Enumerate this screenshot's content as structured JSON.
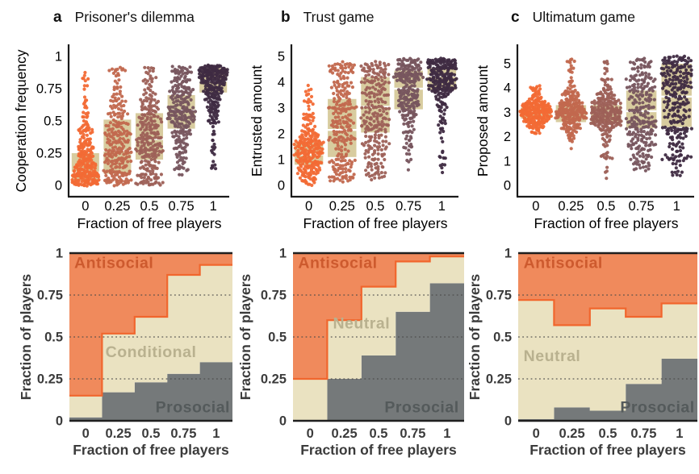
{
  "figure_titles": [
    {
      "letter": "a",
      "title": "Prisoner's dilemma"
    },
    {
      "letter": "b",
      "title": "Trust game"
    },
    {
      "letter": "c",
      "title": "Ultimatum game"
    }
  ],
  "palette": {
    "dot_colors": [
      "#f26a35",
      "#c2684e",
      "#9d6057",
      "#77555e",
      "#3f2b42"
    ],
    "box_fill": "#d8cc9f",
    "median_line": "#ffffff",
    "antisocial_fill": "#f08a5c",
    "antisocial_edge": "#f1662d",
    "neutral_fill": "#eae2c1",
    "prosocial_fill": "#75797a",
    "axis_color": "#1a1a1a",
    "grid_color": "#4a4a4a"
  },
  "chart_data": [
    {
      "type": "scatter",
      "variant": "beeswarm-box",
      "panel": "a",
      "title": "Prisoner's dilemma",
      "ylabel": "Cooperation frequency",
      "xlabel": "Fraction of free players",
      "categories": [
        "0",
        "0.25",
        "0.5",
        "0.75",
        "1"
      ],
      "ylim": [
        0,
        1
      ],
      "yticks": [
        0,
        0.25,
        0.5,
        0.75,
        1
      ],
      "ytick_labels": [
        "0",
        "0.25",
        "0.5",
        "0.75",
        "1"
      ],
      "grid": false,
      "groups": [
        {
          "category": "0",
          "color": "#f26a35",
          "box": [
            0.04,
            0.1,
            0.25
          ],
          "range": [
            0,
            0.9
          ],
          "n": 260,
          "tail": 0.22
        },
        {
          "category": "0.25",
          "color": "#c2684e",
          "box": [
            0.09,
            0.27,
            0.51
          ],
          "range": [
            0,
            0.92
          ],
          "n": 250,
          "tail": 0.28
        },
        {
          "category": "0.5",
          "color": "#9d6057",
          "box": [
            0.2,
            0.36,
            0.56
          ],
          "range": [
            0,
            0.92
          ],
          "n": 250,
          "tail": 0.3
        },
        {
          "category": "0.75",
          "color": "#77555e",
          "box": [
            0.44,
            0.58,
            0.7
          ],
          "range": [
            0.05,
            0.92
          ],
          "n": 250,
          "tail": 0.25
        },
        {
          "category": "1",
          "color": "#3f2b42",
          "box": [
            0.72,
            0.81,
            0.91
          ],
          "range": [
            0.1,
            0.93
          ],
          "n": 250,
          "tail": 0.2
        }
      ]
    },
    {
      "type": "scatter",
      "variant": "beeswarm-box",
      "panel": "b",
      "title": "Trust game",
      "ylabel": "Entrusted amount",
      "xlabel": "Fraction of free players",
      "categories": [
        "0",
        "0.25",
        "0.5",
        "0.75",
        "1"
      ],
      "ylim": [
        0,
        5
      ],
      "yticks": [
        0,
        1,
        2,
        3,
        4,
        5
      ],
      "ytick_labels": [
        "0",
        "1",
        "2",
        "3",
        "4",
        "5"
      ],
      "grid": false,
      "groups": [
        {
          "category": "0",
          "color": "#f26a35",
          "box": [
            0.8,
            1.2,
            1.65
          ],
          "range": [
            0,
            3.9
          ],
          "n": 250,
          "tail": 0.25
        },
        {
          "category": "0.25",
          "color": "#c2684e",
          "box": [
            1.1,
            2.15,
            3.35
          ],
          "range": [
            0.1,
            4.8
          ],
          "n": 245,
          "tail": 0.28
        },
        {
          "category": "0.5",
          "color": "#9d6057",
          "box": [
            2.05,
            3.05,
            4.2
          ],
          "range": [
            0.2,
            4.8
          ],
          "n": 245,
          "tail": 0.28
        },
        {
          "category": "0.75",
          "color": "#77555e",
          "box": [
            2.95,
            3.75,
            4.45
          ],
          "range": [
            0.5,
            4.9
          ],
          "n": 245,
          "tail": 0.22
        },
        {
          "category": "1",
          "color": "#3f2b42",
          "box": [
            3.7,
            4.25,
            4.55
          ],
          "range": [
            0.5,
            4.9
          ],
          "n": 245,
          "tail": 0.18
        }
      ]
    },
    {
      "type": "scatter",
      "variant": "beeswarm-box",
      "panel": "c",
      "title": "Ultimatum game",
      "ylabel": "Proposed amount",
      "xlabel": "Fraction of free players",
      "categories": [
        "0",
        "0.25",
        "0.5",
        "0.75",
        "1"
      ],
      "ylim": [
        0,
        5.3
      ],
      "yticks": [
        0,
        1,
        2,
        3,
        4,
        5
      ],
      "ytick_labels": [
        "0",
        "1",
        "2",
        "3",
        "4",
        "5"
      ],
      "grid": false,
      "groups": [
        {
          "category": "0",
          "color": "#f26a35",
          "box": [
            2.75,
            3.0,
            3.2
          ],
          "range": [
            2.1,
            4.1
          ],
          "n": 255,
          "tail": 0.22
        },
        {
          "category": "0.25",
          "color": "#c2684e",
          "box": [
            2.6,
            3.0,
            3.3
          ],
          "range": [
            1.5,
            5.2
          ],
          "n": 250,
          "tail": 0.22
        },
        {
          "category": "0.5",
          "color": "#9d6057",
          "box": [
            2.6,
            3.0,
            3.3
          ],
          "range": [
            0.3,
            5.2
          ],
          "n": 250,
          "tail": 0.2
        },
        {
          "category": "0.75",
          "color": "#77555e",
          "box": [
            2.35,
            3.05,
            3.9
          ],
          "range": [
            0.6,
            5.3
          ],
          "n": 250,
          "tail": 0.3
        },
        {
          "category": "1",
          "color": "#3f2b42",
          "box": [
            2.4,
            3.65,
            5.0
          ],
          "range": [
            0.4,
            5.3
          ],
          "n": 250,
          "tail": 0.28
        }
      ]
    },
    {
      "type": "area",
      "variant": "stacked-step",
      "game": "Prisoner's dilemma",
      "ylabel": "Fraction of players",
      "xlabel": "Fraction of free players",
      "categories": [
        "0",
        "0.25",
        "0.5",
        "0.75",
        "1"
      ],
      "ylim": [
        0,
        1
      ],
      "yticks": [
        0,
        0.25,
        0.5,
        0.75,
        1
      ],
      "ytick_labels": [
        "0",
        "0.25",
        "0.5",
        "0.75",
        "1"
      ],
      "gridlines": [
        0.25,
        0.5,
        0.75
      ],
      "layers": [
        {
          "name": "Prosocial",
          "color": "#75797a",
          "top": [
            0.02,
            0.17,
            0.23,
            0.28,
            0.35
          ]
        },
        {
          "name": "Conditional",
          "color": "#eae2c1",
          "top": [
            0.15,
            0.52,
            0.62,
            0.87,
            0.93
          ]
        },
        {
          "name": "Antisocial",
          "color": "#f08a5c",
          "top": [
            1,
            1,
            1,
            1,
            1
          ],
          "edge_color": "#f1662d"
        }
      ],
      "labels": [
        {
          "text": "Antisocial",
          "fx": 0.03,
          "fy": 0.09,
          "anchor": "start",
          "color": "#cd5a2e"
        },
        {
          "text": "Conditional",
          "fx": 0.5,
          "fy": 0.62,
          "anchor": "middle",
          "color": "#b9b18f"
        },
        {
          "text": "Prosocial",
          "fx": 0.985,
          "fy": 0.95,
          "anchor": "end",
          "color": "#545a5b"
        }
      ]
    },
    {
      "type": "area",
      "variant": "stacked-step",
      "game": "Trust game",
      "ylabel": "Fraction of players",
      "xlabel": "Fraction of free players",
      "categories": [
        "0",
        "0.25",
        "0.5",
        "0.75",
        "1"
      ],
      "ylim": [
        0,
        1
      ],
      "yticks": [
        0,
        0.25,
        0.5,
        0.75,
        1
      ],
      "ytick_labels": [
        "0",
        "0.25",
        "0.5",
        "0.75",
        "1"
      ],
      "gridlines": [
        0.25,
        0.5,
        0.75
      ],
      "layers": [
        {
          "name": "Prosocial",
          "color": "#75797a",
          "top": [
            0.0,
            0.25,
            0.39,
            0.65,
            0.82
          ]
        },
        {
          "name": "Neutral",
          "color": "#eae2c1",
          "top": [
            0.25,
            0.6,
            0.8,
            0.95,
            0.98
          ]
        },
        {
          "name": "Antisocial",
          "color": "#f08a5c",
          "top": [
            1,
            1,
            1,
            1,
            1
          ],
          "edge_color": "#f1662d"
        }
      ],
      "labels": [
        {
          "text": "Antisocial",
          "fx": 0.03,
          "fy": 0.09,
          "anchor": "start",
          "color": "#cd5a2e"
        },
        {
          "text": "Neutral",
          "fx": 0.4,
          "fy": 0.45,
          "anchor": "middle",
          "color": "#b9b18f"
        },
        {
          "text": "Prosocial",
          "fx": 0.97,
          "fy": 0.95,
          "anchor": "end",
          "color": "#545a5b"
        }
      ]
    },
    {
      "type": "area",
      "variant": "stacked-step",
      "game": "Ultimatum game",
      "ylabel": "Fraction of players",
      "xlabel": "Fraction of free players",
      "categories": [
        "0",
        "0.25",
        "0.5",
        "0.75",
        "1"
      ],
      "ylim": [
        0,
        1
      ],
      "yticks": [
        0,
        0.25,
        0.5,
        0.75,
        1
      ],
      "ytick_labels": [
        "0",
        "0.25",
        "0.5",
        "0.75",
        "1"
      ],
      "gridlines": [
        0.25,
        0.5,
        0.75
      ],
      "layers": [
        {
          "name": "Prosocial",
          "color": "#75797a",
          "top": [
            0.01,
            0.08,
            0.06,
            0.22,
            0.37
          ]
        },
        {
          "name": "Neutral",
          "color": "#eae2c1",
          "top": [
            0.72,
            0.57,
            0.67,
            0.62,
            0.7
          ]
        },
        {
          "name": "Antisocial",
          "color": "#f08a5c",
          "top": [
            1,
            1,
            1,
            1,
            1
          ],
          "edge_color": "#f1662d"
        }
      ],
      "labels": [
        {
          "text": "Antisocial",
          "fx": 0.03,
          "fy": 0.09,
          "anchor": "start",
          "color": "#cd5a2e"
        },
        {
          "text": "Neutral",
          "fx": 0.03,
          "fy": 0.645,
          "anchor": "start",
          "color": "#b9b18f"
        },
        {
          "text": "Prosocial",
          "fx": 0.985,
          "fy": 0.95,
          "anchor": "end",
          "color": "#545a5b"
        }
      ]
    }
  ]
}
